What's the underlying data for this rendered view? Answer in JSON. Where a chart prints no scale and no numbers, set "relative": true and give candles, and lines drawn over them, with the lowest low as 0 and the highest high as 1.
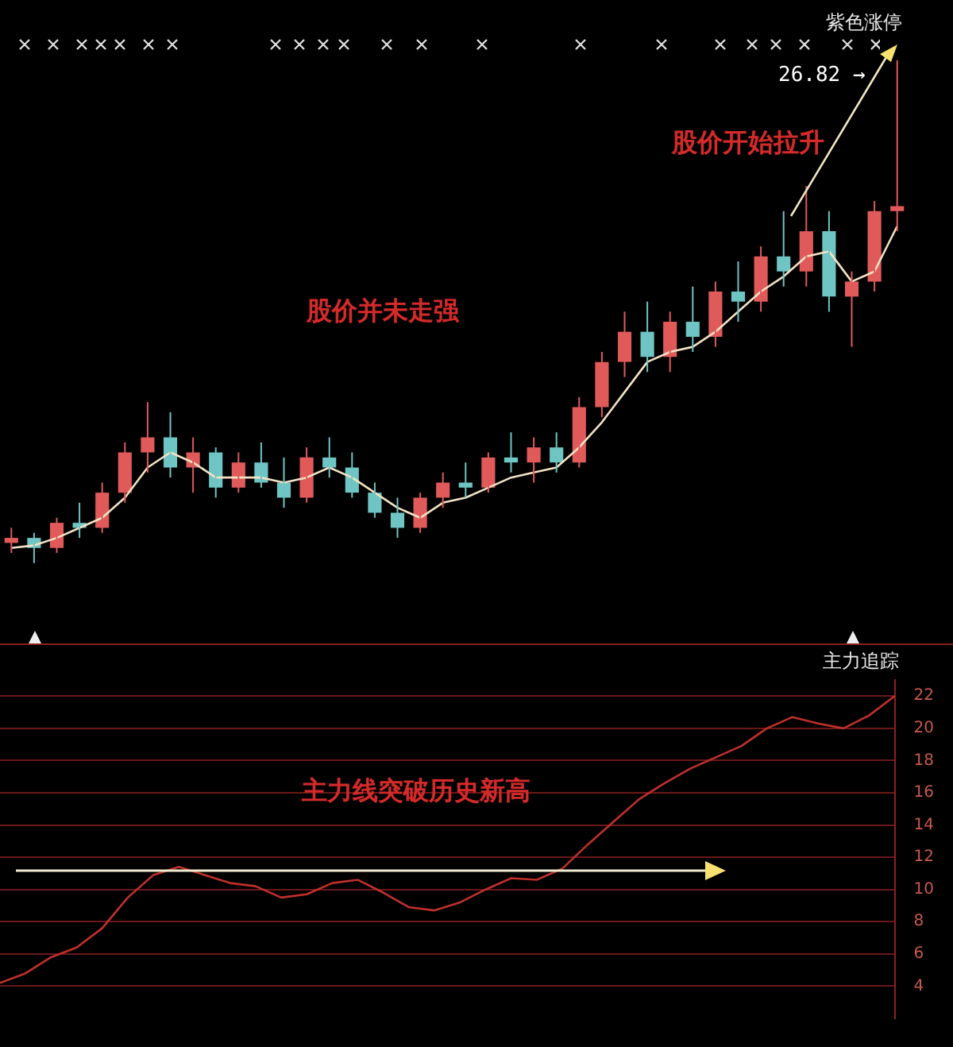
{
  "chart_data": [
    {
      "type": "candlestick",
      "relative": true,
      "categories": [
        null,
        null,
        null,
        null,
        null,
        null,
        null,
        null,
        null,
        null,
        null,
        null,
        null,
        null,
        null,
        null,
        null,
        null,
        null,
        null,
        null,
        null,
        null,
        null,
        null,
        null,
        null,
        null,
        null,
        null,
        null,
        null,
        null,
        null,
        null,
        null,
        null,
        null,
        null,
        null
      ],
      "ohlc": [
        [
          0.04,
          0.07,
          0.02,
          0.05
        ],
        [
          0.05,
          0.06,
          0.0,
          0.03
        ],
        [
          0.03,
          0.09,
          0.02,
          0.08
        ],
        [
          0.08,
          0.12,
          0.05,
          0.07
        ],
        [
          0.07,
          0.16,
          0.06,
          0.14
        ],
        [
          0.14,
          0.24,
          0.12,
          0.22
        ],
        [
          0.22,
          0.32,
          0.18,
          0.25
        ],
        [
          0.25,
          0.3,
          0.17,
          0.19
        ],
        [
          0.19,
          0.25,
          0.14,
          0.22
        ],
        [
          0.22,
          0.23,
          0.13,
          0.15
        ],
        [
          0.15,
          0.22,
          0.14,
          0.2
        ],
        [
          0.2,
          0.24,
          0.15,
          0.16
        ],
        [
          0.16,
          0.21,
          0.11,
          0.13
        ],
        [
          0.13,
          0.23,
          0.12,
          0.21
        ],
        [
          0.21,
          0.25,
          0.17,
          0.19
        ],
        [
          0.19,
          0.22,
          0.13,
          0.14
        ],
        [
          0.14,
          0.16,
          0.09,
          0.1
        ],
        [
          0.1,
          0.13,
          0.05,
          0.07
        ],
        [
          0.07,
          0.14,
          0.06,
          0.13
        ],
        [
          0.13,
          0.18,
          0.11,
          0.16
        ],
        [
          0.16,
          0.2,
          0.13,
          0.15
        ],
        [
          0.15,
          0.22,
          0.14,
          0.21
        ],
        [
          0.21,
          0.26,
          0.18,
          0.2
        ],
        [
          0.2,
          0.25,
          0.16,
          0.23
        ],
        [
          0.23,
          0.26,
          0.18,
          0.2
        ],
        [
          0.2,
          0.33,
          0.19,
          0.31
        ],
        [
          0.31,
          0.42,
          0.29,
          0.4
        ],
        [
          0.4,
          0.5,
          0.37,
          0.46
        ],
        [
          0.46,
          0.52,
          0.38,
          0.41
        ],
        [
          0.41,
          0.5,
          0.38,
          0.48
        ],
        [
          0.48,
          0.55,
          0.42,
          0.45
        ],
        [
          0.45,
          0.56,
          0.43,
          0.54
        ],
        [
          0.54,
          0.6,
          0.48,
          0.52
        ],
        [
          0.52,
          0.63,
          0.5,
          0.61
        ],
        [
          0.61,
          0.7,
          0.55,
          0.58
        ],
        [
          0.58,
          0.75,
          0.55,
          0.66
        ],
        [
          0.66,
          0.7,
          0.5,
          0.53
        ],
        [
          0.53,
          0.58,
          0.43,
          0.56
        ],
        [
          0.56,
          0.72,
          0.54,
          0.7
        ],
        [
          0.7,
          1.0,
          0.66,
          0.71
        ]
      ],
      "colors": [
        "#e05a5a",
        "#6fc4c4",
        "#e05a5a",
        "#6fc4c4",
        "#e05a5a",
        "#e05a5a",
        "#e05a5a",
        "#6fc4c4",
        "#e05a5a",
        "#6fc4c4",
        "#e05a5a",
        "#6fc4c4",
        "#6fc4c4",
        "#e05a5a",
        "#6fc4c4",
        "#6fc4c4",
        "#6fc4c4",
        "#6fc4c4",
        "#e05a5a",
        "#e05a5a",
        "#6fc4c4",
        "#e05a5a",
        "#6fc4c4",
        "#e05a5a",
        "#6fc4c4",
        "#e05a5a",
        "#e05a5a",
        "#e05a5a",
        "#6fc4c4",
        "#e05a5a",
        "#6fc4c4",
        "#e05a5a",
        "#6fc4c4",
        "#e05a5a",
        "#6fc4c4",
        "#e05a5a",
        "#6fc4c4",
        "#e05a5a",
        "#e05a5a",
        "#e05a5a"
      ],
      "series": [
        {
          "type": "line",
          "color": "#f3e2c4",
          "values": [
            0.03,
            0.035,
            0.05,
            0.07,
            0.09,
            0.13,
            0.19,
            0.22,
            0.2,
            0.17,
            0.17,
            0.17,
            0.16,
            0.17,
            0.19,
            0.17,
            0.14,
            0.11,
            0.09,
            0.12,
            0.13,
            0.15,
            0.17,
            0.18,
            0.19,
            0.23,
            0.28,
            0.34,
            0.4,
            0.42,
            0.43,
            0.46,
            0.5,
            0.54,
            0.57,
            0.61,
            0.62,
            0.56,
            0.58,
            0.67
          ]
        }
      ],
      "annotations": [
        "紫色涨停",
        "26.82 →",
        "股价开始拉升",
        "股价并未走强"
      ],
      "legend": false,
      "grid": false
    },
    {
      "type": "line",
      "categories": [
        null,
        null,
        null,
        null,
        null,
        null,
        null,
        null,
        null,
        null,
        null,
        null,
        null,
        null,
        null,
        null,
        null,
        null,
        null,
        null,
        null,
        null,
        null,
        null,
        null,
        null,
        null,
        null,
        null,
        null,
        null,
        null,
        null,
        null,
        null,
        null
      ],
      "series": [
        {
          "color": "#c0302a",
          "values": [
            4.2,
            4.8,
            5.8,
            6.4,
            7.6,
            9.5,
            10.9,
            11.4,
            10.9,
            10.4,
            10.2,
            9.5,
            9.7,
            10.4,
            10.6,
            9.8,
            8.9,
            8.7,
            9.2,
            10.0,
            10.7,
            10.6,
            11.3,
            12.8,
            14.2,
            15.6,
            16.6,
            17.5,
            18.2,
            18.9,
            20.0,
            20.7,
            20.3,
            20.0,
            20.8,
            22.0
          ]
        }
      ],
      "ylim": [
        2,
        23
      ],
      "yticks": [
        4,
        6,
        8,
        10,
        12,
        14,
        16,
        18,
        20,
        22
      ],
      "grid": "y",
      "tick_labels": "y",
      "legend": false,
      "marker": "none",
      "line_style": "solid",
      "annotations": [
        "主力追踪",
        "主力线突破历史新高"
      ]
    }
  ]
}
